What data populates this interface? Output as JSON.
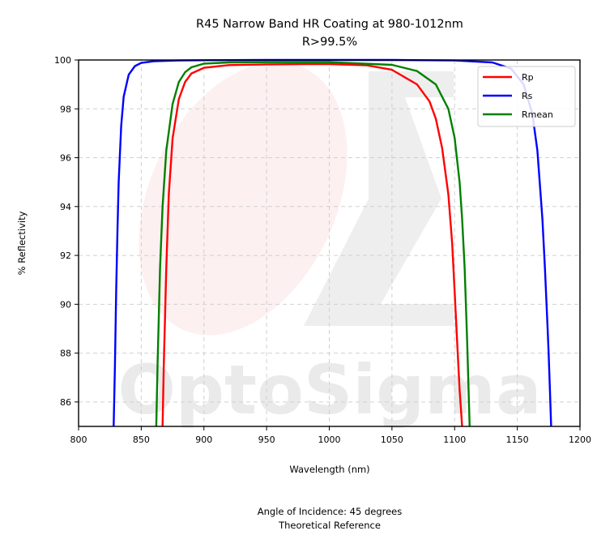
{
  "chart_data": {
    "type": "line",
    "title": "R45 Narrow Band HR Coating at 980-1012nm",
    "subtitle": "R>99.5%",
    "xlabel": "Wavelength (nm)",
    "ylabel": "% Reflectivity",
    "xlim": [
      800,
      1200
    ],
    "ylim": [
      85,
      100
    ],
    "xticks": [
      "800",
      "850",
      "900",
      "950",
      "1000",
      "1050",
      "1100",
      "1150",
      "1200"
    ],
    "yticks": [
      "86",
      "88",
      "90",
      "92",
      "94",
      "96",
      "98",
      "100"
    ],
    "grid": true,
    "legend_position": "top-right",
    "watermark": "OptoSigma",
    "series": [
      {
        "name": "Rp",
        "color": "#ff0000",
        "x": [
          867,
          868,
          870,
          872,
          875,
          880,
          885,
          890,
          900,
          920,
          950,
          980,
          1000,
          1030,
          1050,
          1070,
          1080,
          1085,
          1090,
          1095,
          1098,
          1100,
          1102,
          1104,
          1106
        ],
        "y": [
          85,
          87.5,
          91.5,
          94.5,
          96.8,
          98.4,
          99.1,
          99.45,
          99.68,
          99.79,
          99.82,
          99.83,
          99.83,
          99.78,
          99.6,
          99.0,
          98.3,
          97.6,
          96.4,
          94.5,
          92.5,
          90.5,
          88.5,
          86.5,
          85
        ]
      },
      {
        "name": "Rs",
        "color": "#0000ff",
        "x": [
          828,
          829,
          830,
          831,
          832,
          834,
          836,
          840,
          845,
          850,
          860,
          880,
          900,
          950,
          1000,
          1050,
          1100,
          1130,
          1145,
          1155,
          1162,
          1166,
          1170,
          1172,
          1174,
          1175,
          1176,
          1177
        ],
        "y": [
          85,
          87.5,
          90.5,
          93.0,
          95.0,
          97.3,
          98.5,
          99.4,
          99.75,
          99.88,
          99.95,
          99.98,
          99.99,
          100,
          100,
          100,
          99.98,
          99.9,
          99.65,
          99.0,
          97.8,
          96.3,
          93.5,
          91.5,
          89.2,
          88.0,
          86.5,
          85
        ]
      },
      {
        "name": "Rmean",
        "color": "#008000",
        "x": [
          862,
          863,
          865,
          867,
          870,
          875,
          880,
          885,
          890,
          900,
          920,
          950,
          1000,
          1050,
          1070,
          1085,
          1095,
          1100,
          1104,
          1106,
          1108,
          1110,
          1112
        ],
        "y": [
          85,
          87.5,
          91.5,
          94.0,
          96.3,
          98.2,
          99.1,
          99.5,
          99.7,
          99.85,
          99.9,
          99.91,
          99.91,
          99.8,
          99.55,
          99.0,
          98.0,
          96.8,
          95.0,
          93.5,
          91.5,
          88.5,
          85
        ]
      }
    ]
  },
  "footer": {
    "line1": "Angle of Incidence: 45 degrees",
    "line2": "Theoretical Reference"
  }
}
